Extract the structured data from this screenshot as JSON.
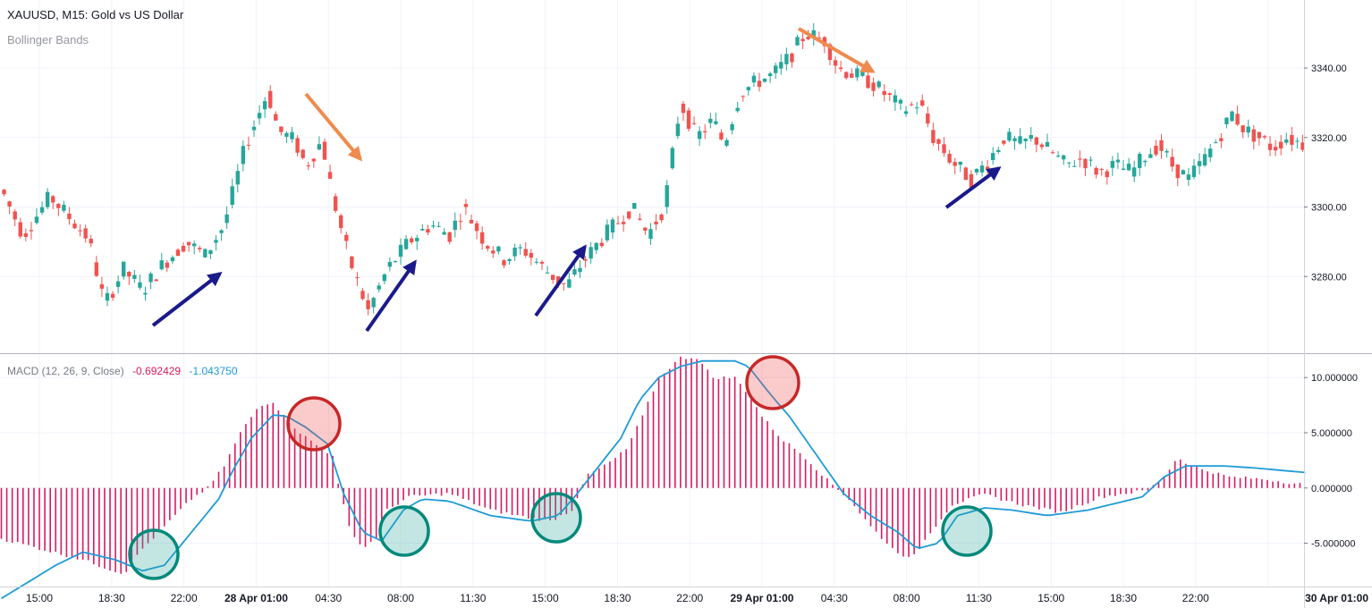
{
  "header": {
    "title": "XAUUSD, M15: Gold vs US Dollar",
    "overlay": "Bollinger Bands",
    "macd_label": "MACD (12, 26, 9, Close)",
    "macd_value1": "-0.692429",
    "macd_value2": "-1.043750"
  },
  "colors": {
    "bull": "#26a69a",
    "bear": "#ef5350",
    "histogram": "#d81b60",
    "signal_line": "#1e9bd7",
    "arrow_up": "#1a1a8c",
    "arrow_down": "#ef8b4e",
    "peak_circle": "#c62828",
    "trough_circle": "#00897b",
    "grid": "#f0f3fa",
    "axis": "#d1d4dc"
  },
  "chart_data": [
    {
      "type": "candlestick",
      "title": "XAUUSD, M15: Gold vs US Dollar",
      "overlay": "Bollinger Bands",
      "ylim": [
        3260,
        3357
      ],
      "y_ticks": [
        "3340.00",
        "3320.00",
        "3300.00",
        "3280.00"
      ],
      "x_ticks": [
        "15:00",
        "18:30",
        "22:00",
        "28 Apr 01:00",
        "04:30",
        "08:00",
        "11:30",
        "15:00",
        "18:30",
        "22:00",
        "29 Apr 01:00",
        "04:30",
        "08:00",
        "11:30",
        "15:00",
        "18:30",
        "22:00",
        "30 Apr 01:00"
      ],
      "bold_x_ticks": [
        "28 Apr 01:00",
        "29 Apr 01:00",
        "30 Apr 01:00"
      ],
      "close_path": [
        [
          0,
          3305
        ],
        [
          8,
          3292
        ],
        [
          18,
          3303
        ],
        [
          25,
          3297
        ],
        [
          32,
          3291
        ],
        [
          38,
          3272
        ],
        [
          45,
          3282
        ],
        [
          52,
          3276
        ],
        [
          60,
          3284
        ],
        [
          68,
          3290
        ],
        [
          75,
          3286
        ],
        [
          82,
          3295
        ],
        [
          90,
          3318
        ],
        [
          98,
          3333
        ],
        [
          102,
          3322
        ],
        [
          108,
          3319
        ],
        [
          112,
          3312
        ],
        [
          118,
          3319
        ],
        [
          122,
          3303
        ],
        [
          128,
          3285
        ],
        [
          135,
          3270
        ],
        [
          142,
          3282
        ],
        [
          150,
          3290
        ],
        [
          158,
          3295
        ],
        [
          165,
          3292
        ],
        [
          170,
          3300
        ],
        [
          178,
          3290
        ],
        [
          185,
          3285
        ],
        [
          192,
          3288
        ],
        [
          200,
          3282
        ],
        [
          208,
          3277
        ],
        [
          213,
          3283
        ],
        [
          220,
          3290
        ],
        [
          226,
          3295
        ],
        [
          232,
          3300
        ],
        [
          238,
          3292
        ],
        [
          244,
          3300
        ],
        [
          250,
          3330
        ],
        [
          256,
          3320
        ],
        [
          262,
          3325
        ],
        [
          266,
          3318
        ],
        [
          272,
          3333
        ],
        [
          278,
          3336
        ],
        [
          284,
          3338
        ],
        [
          290,
          3343
        ],
        [
          296,
          3350
        ],
        [
          303,
          3348
        ],
        [
          308,
          3340
        ],
        [
          314,
          3338
        ],
        [
          320,
          3336
        ],
        [
          326,
          3332
        ],
        [
          332,
          3328
        ],
        [
          338,
          3330
        ],
        [
          343,
          3320
        ],
        [
          350,
          3313
        ],
        [
          357,
          3308
        ],
        [
          363,
          3313
        ],
        [
          369,
          3320
        ],
        [
          375,
          3318
        ],
        [
          380,
          3320
        ],
        [
          386,
          3316
        ],
        [
          392,
          3312
        ],
        [
          398,
          3314
        ],
        [
          404,
          3310
        ],
        [
          410,
          3312
        ],
        [
          416,
          3310
        ],
        [
          420,
          3314
        ],
        [
          426,
          3318
        ],
        [
          431,
          3312
        ],
        [
          437,
          3308
        ],
        [
          443,
          3314
        ],
        [
          448,
          3320
        ],
        [
          453,
          3327
        ],
        [
          458,
          3322
        ],
        [
          463,
          3320
        ],
        [
          468,
          3317
        ],
        [
          473,
          3320
        ],
        [
          480,
          3318
        ]
      ],
      "annotations": {
        "up_arrows": 4,
        "down_arrows": 2
      }
    },
    {
      "type": "histogram+line",
      "title": "MACD (12, 26, 9, Close)",
      "values_shown": [
        "-0.692429",
        "-1.043750"
      ],
      "ylim": [
        -8.6,
        11.8
      ],
      "y_ticks": [
        "10.000000",
        "5.000000",
        "0.000000",
        "-5.000000"
      ],
      "series": [
        {
          "name": "histogram",
          "points": [
            [
              0,
              -4.6
            ],
            [
              30,
              -6.5
            ],
            [
              45,
              -7.8
            ],
            [
              52,
              -5.5
            ],
            [
              60,
              -3.5
            ],
            [
              70,
              -1.0
            ],
            [
              76,
              0.0
            ],
            [
              82,
              2.0
            ],
            [
              88,
              5.0
            ],
            [
              95,
              7.5
            ],
            [
              100,
              7.8
            ],
            [
              104,
              6.5
            ],
            [
              110,
              5.0
            ],
            [
              118,
              3.5
            ],
            [
              122,
              3.0
            ],
            [
              124,
              0.3
            ],
            [
              128,
              -3.5
            ],
            [
              133,
              -5.5
            ],
            [
              138,
              -4.5
            ],
            [
              142,
              -2.0
            ],
            [
              150,
              -0.8
            ],
            [
              165,
              -0.5
            ],
            [
              180,
              -2.0
            ],
            [
              192,
              -2.6
            ],
            [
              202,
              -3.0
            ],
            [
              210,
              -2.0
            ],
            [
              215,
              1.0
            ],
            [
              225,
              2.5
            ],
            [
              230,
              3.5
            ],
            [
              236,
              6.5
            ],
            [
              242,
              10.0
            ],
            [
              250,
              11.8
            ],
            [
              256,
              11.8
            ],
            [
              262,
              10.0
            ],
            [
              270,
              10.0
            ],
            [
              275,
              8.5
            ],
            [
              280,
              6.5
            ],
            [
              287,
              4.5
            ],
            [
              295,
              3.0
            ],
            [
              305,
              0.5
            ],
            [
              312,
              -1.0
            ],
            [
              320,
              -3.5
            ],
            [
              328,
              -5.5
            ],
            [
              335,
              -6.5
            ],
            [
              342,
              -4.0
            ],
            [
              350,
              -1.5
            ],
            [
              362,
              -0.6
            ],
            [
              375,
              -1.5
            ],
            [
              390,
              -2.2
            ],
            [
              405,
              -0.8
            ],
            [
              422,
              -0.2
            ],
            [
              428,
              1.0
            ],
            [
              433,
              2.8
            ],
            [
              438,
              2.0
            ],
            [
              452,
              1.0
            ],
            [
              465,
              0.8
            ],
            [
              480,
              0.3
            ]
          ]
        },
        {
          "name": "signal_line",
          "points": [
            [
              0,
              -10.0
            ],
            [
              20,
              -7.0
            ],
            [
              30,
              -5.8
            ],
            [
              42,
              -6.5
            ],
            [
              52,
              -7.5
            ],
            [
              60,
              -7.0
            ],
            [
              70,
              -4.0
            ],
            [
              80,
              -1.0
            ],
            [
              85,
              1.5
            ],
            [
              92,
              4.5
            ],
            [
              100,
              6.6
            ],
            [
              105,
              6.5
            ],
            [
              112,
              5.5
            ],
            [
              120,
              4.0
            ],
            [
              126,
              -0.5
            ],
            [
              133,
              -4.0
            ],
            [
              140,
              -4.8
            ],
            [
              148,
              -2.0
            ],
            [
              155,
              -1.0
            ],
            [
              165,
              -1.2
            ],
            [
              180,
              -2.5
            ],
            [
              195,
              -3.0
            ],
            [
              205,
              -2.5
            ],
            [
              212,
              -0.5
            ],
            [
              220,
              2.0
            ],
            [
              228,
              4.5
            ],
            [
              235,
              8.0
            ],
            [
              242,
              10.0
            ],
            [
              250,
              11.0
            ],
            [
              258,
              11.5
            ],
            [
              270,
              11.5
            ],
            [
              275,
              11.0
            ],
            [
              283,
              8.5
            ],
            [
              290,
              6.5
            ],
            [
              300,
              3.0
            ],
            [
              310,
              -0.5
            ],
            [
              320,
              -2.5
            ],
            [
              330,
              -4.0
            ],
            [
              337,
              -5.5
            ],
            [
              345,
              -5.0
            ],
            [
              352,
              -2.5
            ],
            [
              362,
              -1.8
            ],
            [
              372,
              -2.0
            ],
            [
              385,
              -2.5
            ],
            [
              400,
              -2.0
            ],
            [
              420,
              -0.8
            ],
            [
              428,
              1.0
            ],
            [
              436,
              2.0
            ],
            [
              450,
              2.0
            ],
            [
              462,
              1.8
            ],
            [
              480,
              1.4
            ]
          ]
        }
      ],
      "annotations": {
        "peak_circles": 2,
        "trough_circles": 4
      }
    }
  ]
}
